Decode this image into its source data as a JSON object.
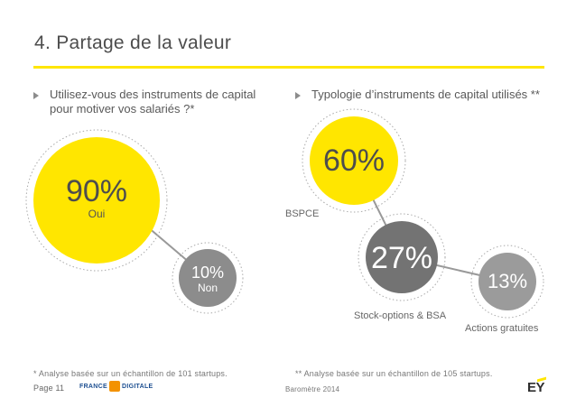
{
  "header": {
    "title": "4. Partage de la valeur"
  },
  "left": {
    "question_line1": "Utilisez-vous des instruments de capital",
    "question_line2": "pour motiver vos salariés ?*",
    "yes": {
      "value": "90%",
      "label": "Oui",
      "share": 0.9
    },
    "no": {
      "value": "10%",
      "label": "Non",
      "share": 0.1
    },
    "footnote": "* Analyse basée sur un échantillon de 101 startups."
  },
  "right": {
    "question": "Typologie d’instruments de capital utilisés **",
    "items": [
      {
        "value": "60%",
        "label": "BSPCE",
        "share": 0.6
      },
      {
        "value": "27%",
        "label": "Stock-options & BSA",
        "share": 0.27
      },
      {
        "value": "13%",
        "label": "Actions gratuites",
        "share": 0.13
      }
    ],
    "footnote": "** Analyse basée sur un échantillon de 105 startups."
  },
  "footer": {
    "page": "Page 11",
    "partner_left": "FRANCE",
    "partner_right": "DIGITALE",
    "center": "Baromètre 2014",
    "brand": "EY"
  },
  "colors": {
    "yellow": "#ffe600",
    "gray": "#737373",
    "gray_mid": "#8c8c8c",
    "gray_light": "#9b9b9b",
    "text": "#4d4d4d"
  }
}
